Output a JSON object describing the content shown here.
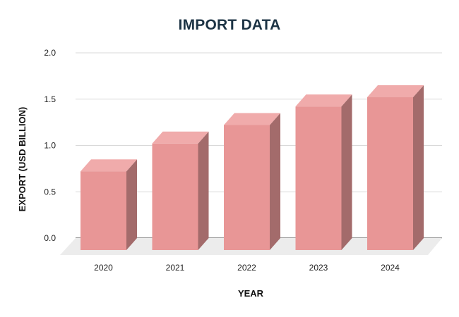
{
  "chart_data": {
    "type": "bar",
    "title": "IMPORT DATA",
    "xlabel": "YEAR",
    "ylabel": "EXPORT (USD BILLION)",
    "categories": [
      "2020",
      "2021",
      "2022",
      "2023",
      "2024"
    ],
    "values": [
      0.85,
      1.15,
      1.35,
      1.55,
      1.65
    ],
    "ylim": [
      0,
      2.0
    ],
    "yticks": [
      "0.0",
      "0.5",
      "1.0",
      "1.5",
      "2.0"
    ],
    "grid": true,
    "style": "3d-column",
    "colors": {
      "bar_front": "#e89696",
      "bar_top": "#f0abab",
      "bar_side": "#a36b6b",
      "floor": "#ececec",
      "grid": "#d9d9d9",
      "title": "#1c3344"
    }
  }
}
